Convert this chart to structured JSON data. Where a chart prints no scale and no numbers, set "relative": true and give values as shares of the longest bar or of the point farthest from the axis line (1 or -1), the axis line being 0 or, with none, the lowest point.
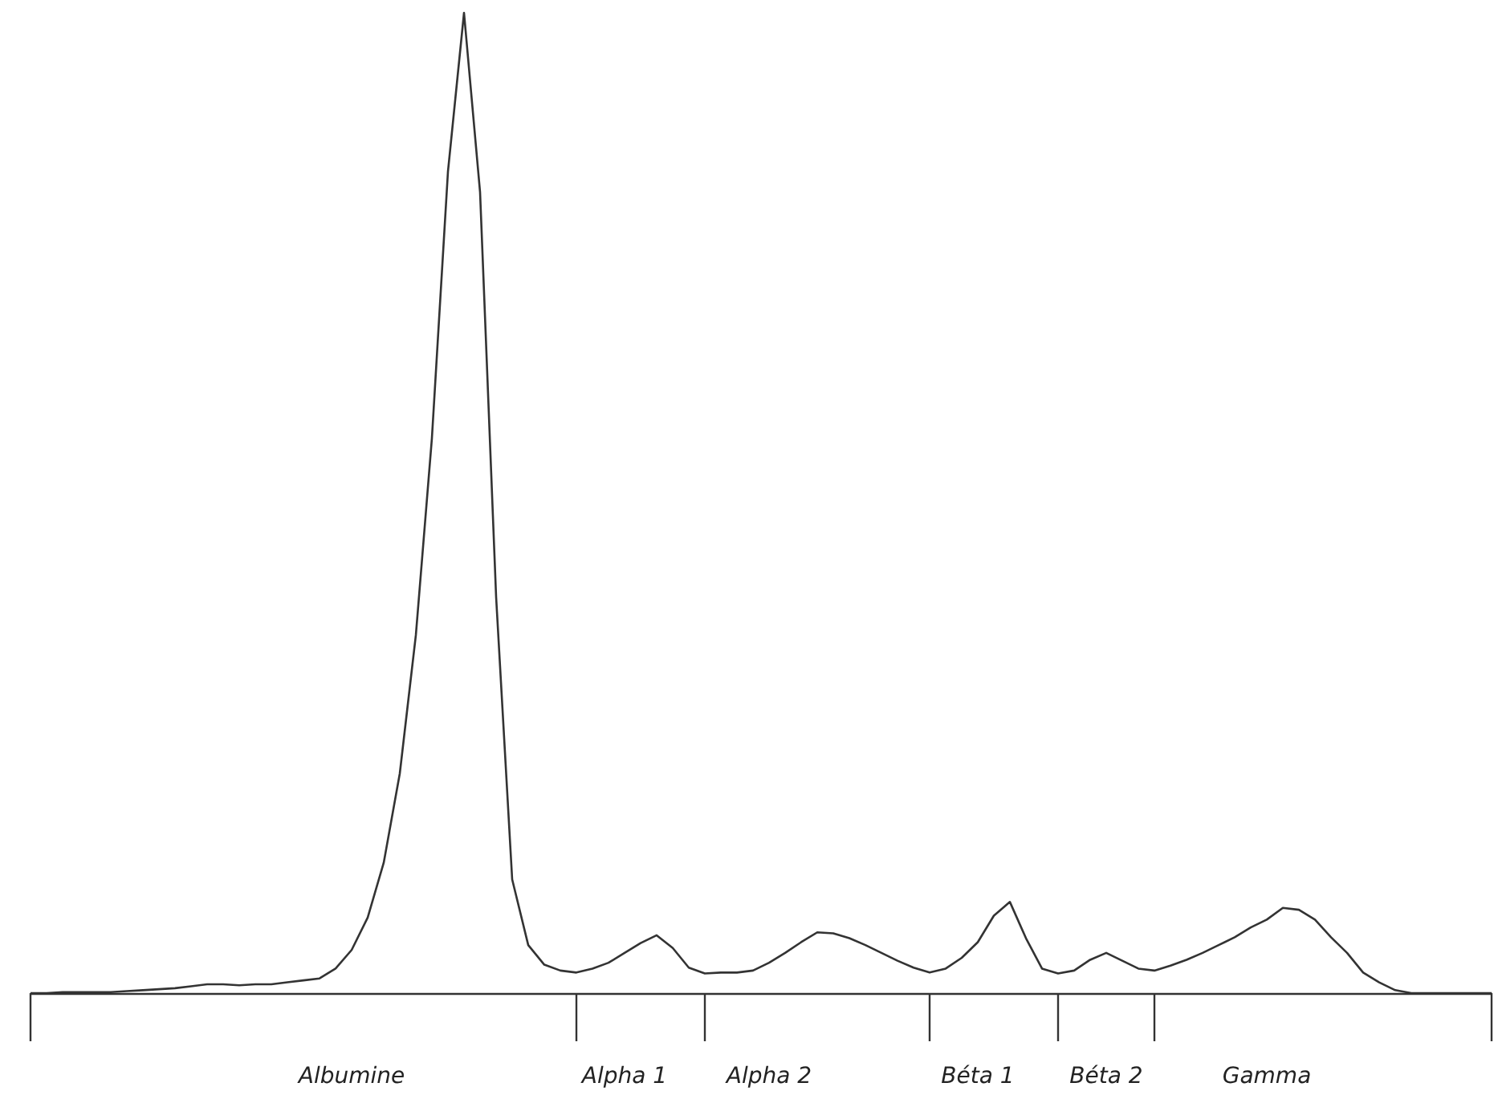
{
  "chart_data": {
    "type": "line",
    "relative": true,
    "color": "#333333",
    "categories": [
      null,
      null,
      null,
      null,
      null,
      null,
      null,
      null,
      null,
      null,
      null,
      null,
      null,
      null,
      null,
      null,
      null,
      null,
      null,
      null,
      "Albumine",
      null,
      null,
      null,
      null,
      null,
      null,
      null,
      null,
      null,
      null,
      null,
      null,
      null,
      null,
      null,
      null,
      "Alpha 1",
      null,
      null,
      null,
      null,
      null,
      null,
      null,
      null,
      "Alpha 2",
      null,
      null,
      null,
      null,
      null,
      null,
      null,
      null,
      null,
      null,
      null,
      null,
      "Béta 1",
      null,
      null,
      null,
      null,
      null,
      null,
      null,
      "Béta 2",
      null,
      null,
      null,
      null,
      null,
      null,
      null,
      null,
      null,
      "Gamma",
      null,
      null,
      null,
      null,
      null,
      null,
      null,
      null,
      null,
      null,
      null,
      null,
      null,
      null
    ],
    "values": [
      0,
      0,
      0.001,
      0.001,
      0.001,
      0.001,
      0.002,
      0.003,
      0.004,
      0.005,
      0.007,
      0.009,
      0.009,
      0.008,
      0.009,
      0.009,
      0.011,
      0.013,
      0.015,
      0.025,
      0.044,
      0.077,
      0.133,
      0.224,
      0.365,
      0.566,
      0.838,
      1.0,
      0.817,
      0.404,
      0.116,
      0.049,
      0.029,
      0.023,
      0.021,
      0.025,
      0.031,
      0.041,
      0.051,
      0.059,
      0.046,
      0.026,
      0.02,
      0.021,
      0.021,
      0.023,
      0.031,
      0.041,
      0.052,
      0.062,
      0.061,
      0.056,
      0.049,
      0.041,
      0.033,
      0.026,
      0.021,
      0.025,
      0.036,
      0.052,
      0.079,
      0.093,
      0.056,
      0.025,
      0.02,
      0.023,
      0.034,
      0.041,
      0.033,
      0.025,
      0.023,
      0.028,
      0.034,
      0.041,
      0.049,
      0.057,
      0.067,
      0.075,
      0.087,
      0.085,
      0.075,
      0.057,
      0.041,
      0.021,
      0.011,
      0.003,
      0,
      0,
      0,
      0,
      0,
      0
    ],
    "grid": false,
    "marker": "none",
    "line_style": "solid"
  }
}
